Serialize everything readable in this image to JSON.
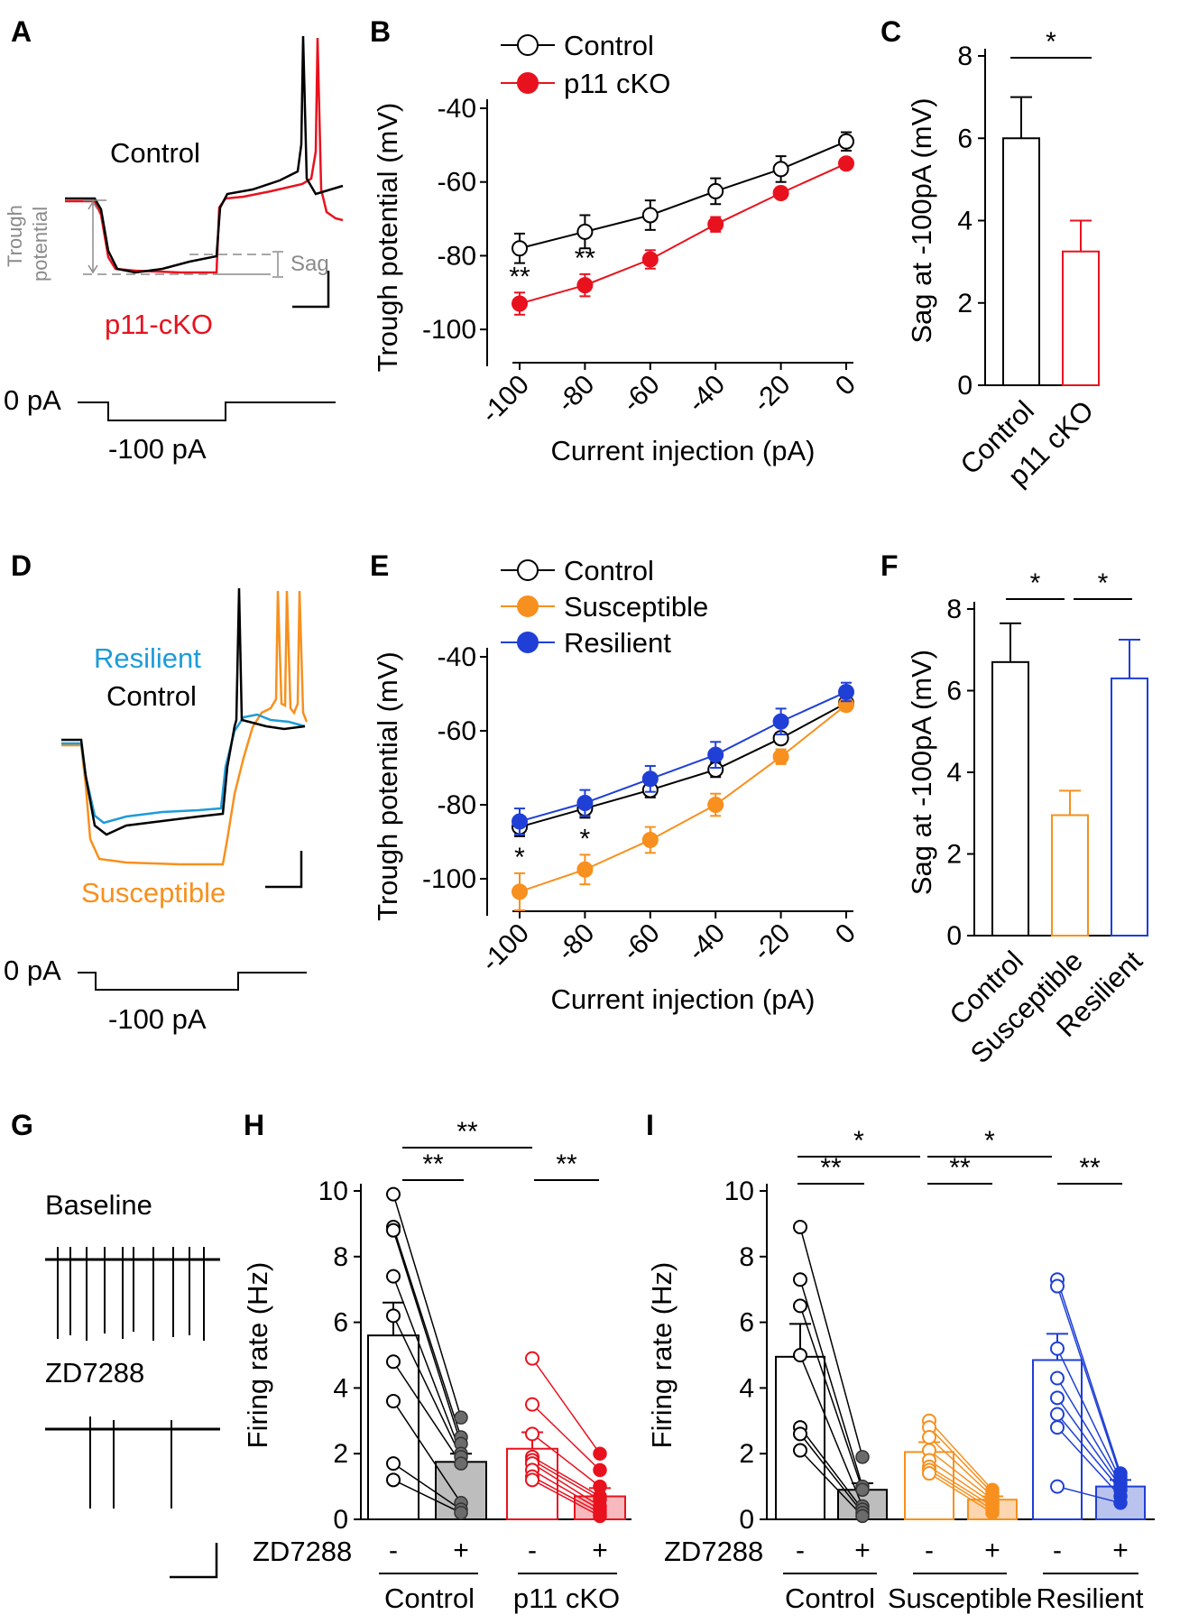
{
  "panel_letters": [
    "A",
    "B",
    "C",
    "D",
    "E",
    "F",
    "G",
    "H",
    "I"
  ],
  "colors": {
    "control": "#000000",
    "p11": "#e8121e",
    "susceptible": "#f7901e",
    "resilient": "#1f3fd6",
    "resilient_trace": "#1e9bd8",
    "gray": "#8a8a8a",
    "control_fill": "#bdbdbd",
    "control_point": "#6b6b6b",
    "p11_fill": "#f7b9bd",
    "sus_fill": "#fbd6b0",
    "res_fill": "#b9c3ee"
  },
  "panelA": {
    "control": "Control",
    "cko": "p11-cKO",
    "trough_line1": "Trough",
    "trough_line2": "potential",
    "sag": "Sag",
    "zero": "0 pA",
    "step": "-100 pA"
  },
  "panelD": {
    "resilient": "Resilient",
    "control": "Control",
    "susceptible": "Susceptible",
    "zero": "0 pA",
    "step": "-100 pA"
  },
  "panelG": {
    "baseline": "Baseline",
    "zd": "ZD7288"
  },
  "panelH": {
    "zd": "ZD7288",
    "minus": "-",
    "plus": "+",
    "group1": "Control",
    "group2": "p11 cKO"
  },
  "panelI": {
    "zd": "ZD7288",
    "minus": "-",
    "plus": "+",
    "group1": "Control",
    "group2": "Susceptible",
    "group3": "Resilient"
  },
  "chart_data": [
    {
      "panel": "B",
      "type": "line",
      "xlabel": "Current injection (pA)",
      "ylabel": "Trough potential (mV)",
      "x": [
        -100,
        -80,
        -60,
        -40,
        -20,
        0
      ],
      "xlim": [
        -100,
        0
      ],
      "ylim": [
        -110,
        -40
      ],
      "xticks": [
        "-100",
        "-80",
        "-60",
        "-40",
        "-20",
        "0"
      ],
      "yticks": [
        "-40",
        "-60",
        "-80",
        "-100"
      ],
      "series": [
        {
          "name": "Control",
          "values": [
            -78,
            -73.5,
            -69,
            -62.5,
            -56.5,
            -49
          ],
          "errors": [
            4,
            4.5,
            4,
            3.5,
            3.5,
            2.5
          ],
          "marker": "open"
        },
        {
          "name": "p11 cKO",
          "values": [
            -93,
            -88,
            -81,
            -71.5,
            -63,
            -55
          ],
          "errors": [
            3,
            3,
            2.5,
            2,
            1.5,
            1
          ],
          "marker": "filled"
        }
      ],
      "annotations": [
        {
          "x": -100,
          "text": "**"
        },
        {
          "x": -80,
          "text": "**"
        }
      ],
      "legend": "top-left"
    },
    {
      "panel": "C",
      "type": "bar",
      "categories": [
        "Control",
        "p11 cKO"
      ],
      "values": [
        6,
        3.25
      ],
      "errors": [
        1,
        0.75
      ],
      "ylabel": "Sag at -100pA (mV)",
      "ylim": [
        0,
        8
      ],
      "yticks": [
        "0",
        "2",
        "4",
        "6",
        "8"
      ],
      "comparisons": [
        {
          "from": 0,
          "to": 1,
          "text": "*"
        }
      ]
    },
    {
      "panel": "E",
      "type": "line",
      "xlabel": "Current injection (pA)",
      "ylabel": "Trough potential (mV)",
      "x": [
        -100,
        -80,
        -60,
        -40,
        -20,
        0
      ],
      "xlim": [
        -100,
        0
      ],
      "ylim": [
        -110,
        -40
      ],
      "xticks": [
        "-100",
        "-80",
        "-60",
        "-40",
        "-20",
        "0"
      ],
      "yticks": [
        "-40",
        "-60",
        "-80",
        "-100"
      ],
      "series": [
        {
          "name": "Control",
          "values": [
            -86,
            -81,
            -76,
            -70.5,
            -62,
            -52.5
          ],
          "errors": [
            2.5,
            2.5,
            2,
            2,
            1.5,
            1.5
          ],
          "marker": "open"
        },
        {
          "name": "Susceptible",
          "values": [
            -103.5,
            -97.5,
            -89.5,
            -80,
            -67,
            -53
          ],
          "errors": [
            5,
            4,
            3.5,
            3,
            2,
            1.5
          ],
          "marker": "filled"
        },
        {
          "name": "Resilient",
          "values": [
            -84.5,
            -79.5,
            -73,
            -66.5,
            -57.5,
            -49.5
          ],
          "errors": [
            3.5,
            3.5,
            3.5,
            3.5,
            3.5,
            2.5
          ],
          "marker": "filled"
        }
      ],
      "annotations": [
        {
          "x": -100,
          "text": "*"
        },
        {
          "x": -80,
          "text": "*"
        }
      ],
      "legend": "top-left"
    },
    {
      "panel": "F",
      "type": "bar",
      "categories": [
        "Control",
        "Susceptible",
        "Resilient"
      ],
      "values": [
        6.7,
        2.95,
        6.3
      ],
      "errors": [
        0.95,
        0.6,
        0.95
      ],
      "ylabel": "Sag at -100pA (mV)",
      "ylim": [
        0,
        8
      ],
      "yticks": [
        "0",
        "2",
        "4",
        "6",
        "8"
      ],
      "comparisons": [
        {
          "from": 0,
          "to": 1,
          "text": "*"
        },
        {
          "from": 1,
          "to": 2,
          "text": "*"
        }
      ]
    },
    {
      "panel": "H",
      "type": "bar",
      "categories": [
        "Control -",
        "Control +",
        "p11 cKO -",
        "p11 cKO +"
      ],
      "values": [
        5.6,
        1.75,
        2.15,
        0.7
      ],
      "errors": [
        1,
        0.25,
        0.5,
        0.25
      ],
      "ylabel": "Firing rate (Hz)",
      "ylim": [
        0,
        10
      ],
      "yticks": [
        "0",
        "2",
        "4",
        "6",
        "8",
        "10"
      ],
      "paired_points": [
        {
          "group": "Control",
          "pre": [
            9.9,
            8.9,
            8.8,
            7.4,
            6.2,
            4.8,
            3.6,
            1.7,
            1.2
          ],
          "post": [
            3.1,
            2.5,
            2.3,
            2.0,
            1.9,
            1.7,
            0.5,
            0.3,
            0.2
          ]
        },
        {
          "group": "p11 cKO",
          "pre": [
            4.9,
            3.5,
            2.6,
            1.9,
            1.8,
            1.7,
            1.5,
            1.3,
            1.2
          ],
          "post": [
            2.0,
            1.5,
            1.0,
            0.7,
            0.6,
            0.4,
            0.3,
            0.2,
            0.1
          ]
        }
      ],
      "comparisons": [
        {
          "from": 0,
          "to": 1,
          "text": "**"
        },
        {
          "from": 2,
          "to": 3,
          "text": "**"
        },
        {
          "from": 0,
          "to": 2,
          "text": "**"
        }
      ]
    },
    {
      "panel": "I",
      "type": "bar",
      "categories": [
        "Control -",
        "Control +",
        "Susceptible -",
        "Susceptible +",
        "Resilient -",
        "Resilient +"
      ],
      "values": [
        4.95,
        0.9,
        2.05,
        0.6,
        4.85,
        1.0
      ],
      "errors": [
        1,
        0.2,
        0.3,
        0.1,
        0.8,
        0.2
      ],
      "ylabel": "Firing rate (Hz)",
      "ylim": [
        0,
        10
      ],
      "yticks": [
        "0",
        "2",
        "4",
        "6",
        "8",
        "10"
      ],
      "paired_points": [
        {
          "group": "Control",
          "pre": [
            8.9,
            7.3,
            6.5,
            5.0,
            2.8,
            2.6,
            2.1
          ],
          "post": [
            1.9,
            1.0,
            0.9,
            0.4,
            0.3,
            0.2,
            0.1
          ]
        },
        {
          "group": "Susceptible",
          "pre": [
            3.0,
            2.8,
            2.5,
            2.1,
            1.8,
            1.6,
            1.5,
            1.4
          ],
          "post": [
            0.9,
            0.8,
            0.7,
            0.6,
            0.5,
            0.4,
            0.3,
            0.2
          ]
        },
        {
          "group": "Resilient",
          "pre": [
            7.3,
            7.1,
            5.2,
            4.3,
            3.7,
            3.2,
            2.8,
            1.0
          ],
          "post": [
            1.4,
            1.3,
            1.2,
            1.1,
            1.0,
            0.9,
            0.7,
            0.5
          ]
        }
      ],
      "comparisons": [
        {
          "from": 0,
          "to": 1,
          "text": "**"
        },
        {
          "from": 2,
          "to": 3,
          "text": "**"
        },
        {
          "from": 4,
          "to": 5,
          "text": "**"
        },
        {
          "from": 0,
          "to": 2,
          "text": "*"
        },
        {
          "from": 2,
          "to": 4,
          "text": "*"
        }
      ]
    }
  ]
}
